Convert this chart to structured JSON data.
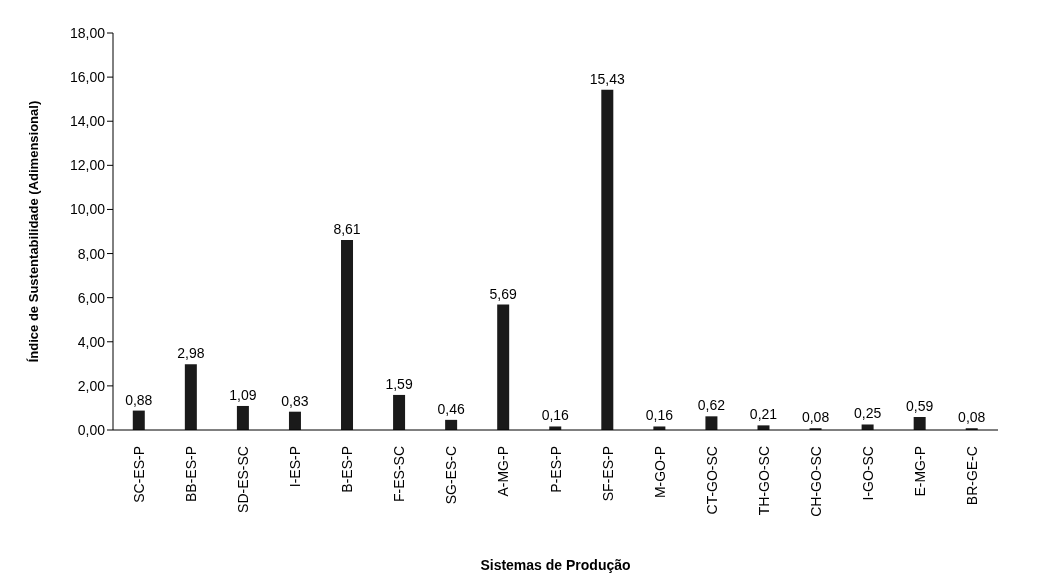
{
  "chart_data": {
    "type": "bar",
    "xlabel": "Sistemas de Produção",
    "ylabel": "Índice de Sustentabilidade (Adimensional)",
    "categories": [
      "SC-ES-P",
      "BB-ES-P",
      "SD-ES-SC",
      "I-ES-P",
      "B-ES-P",
      "F-ES-SC",
      "SG-ES-C",
      "A-MG-P",
      "P-ES-P",
      "SF-ES-P",
      "M-GO-P",
      "CT-GO-SC",
      "TH-GO-SC",
      "CH-GO-SC",
      "I-GO-SC",
      "E-MG-P",
      "BR-GE-C"
    ],
    "values": [
      0.88,
      2.98,
      1.09,
      0.83,
      8.61,
      1.59,
      0.46,
      5.69,
      0.16,
      15.43,
      0.16,
      0.62,
      0.21,
      0.08,
      0.25,
      0.59,
      0.08
    ],
    "value_labels": [
      "0,88",
      "2,98",
      "1,09",
      "0,83",
      "8,61",
      "1,59",
      "0,46",
      "5,69",
      "0,16",
      "15,43",
      "0,16",
      "0,62",
      "0,21",
      "0,08",
      "0,25",
      "0,59",
      "0,08"
    ],
    "color": "#1a1a1a",
    "ylim": [
      0,
      18
    ],
    "yticks": [
      {
        "value": 0,
        "label": "0,00"
      },
      {
        "value": 2,
        "label": "2,00"
      },
      {
        "value": 4,
        "label": "4,00"
      },
      {
        "value": 6,
        "label": "6,00"
      },
      {
        "value": 8,
        "label": "8,00"
      },
      {
        "value": 10,
        "label": "10,00"
      },
      {
        "value": 12,
        "label": "12,00"
      },
      {
        "value": 14,
        "label": "14,00"
      },
      {
        "value": 16,
        "label": "16,00"
      },
      {
        "value": 18,
        "label": "18,00"
      }
    ],
    "grid": false,
    "legend": false
  }
}
